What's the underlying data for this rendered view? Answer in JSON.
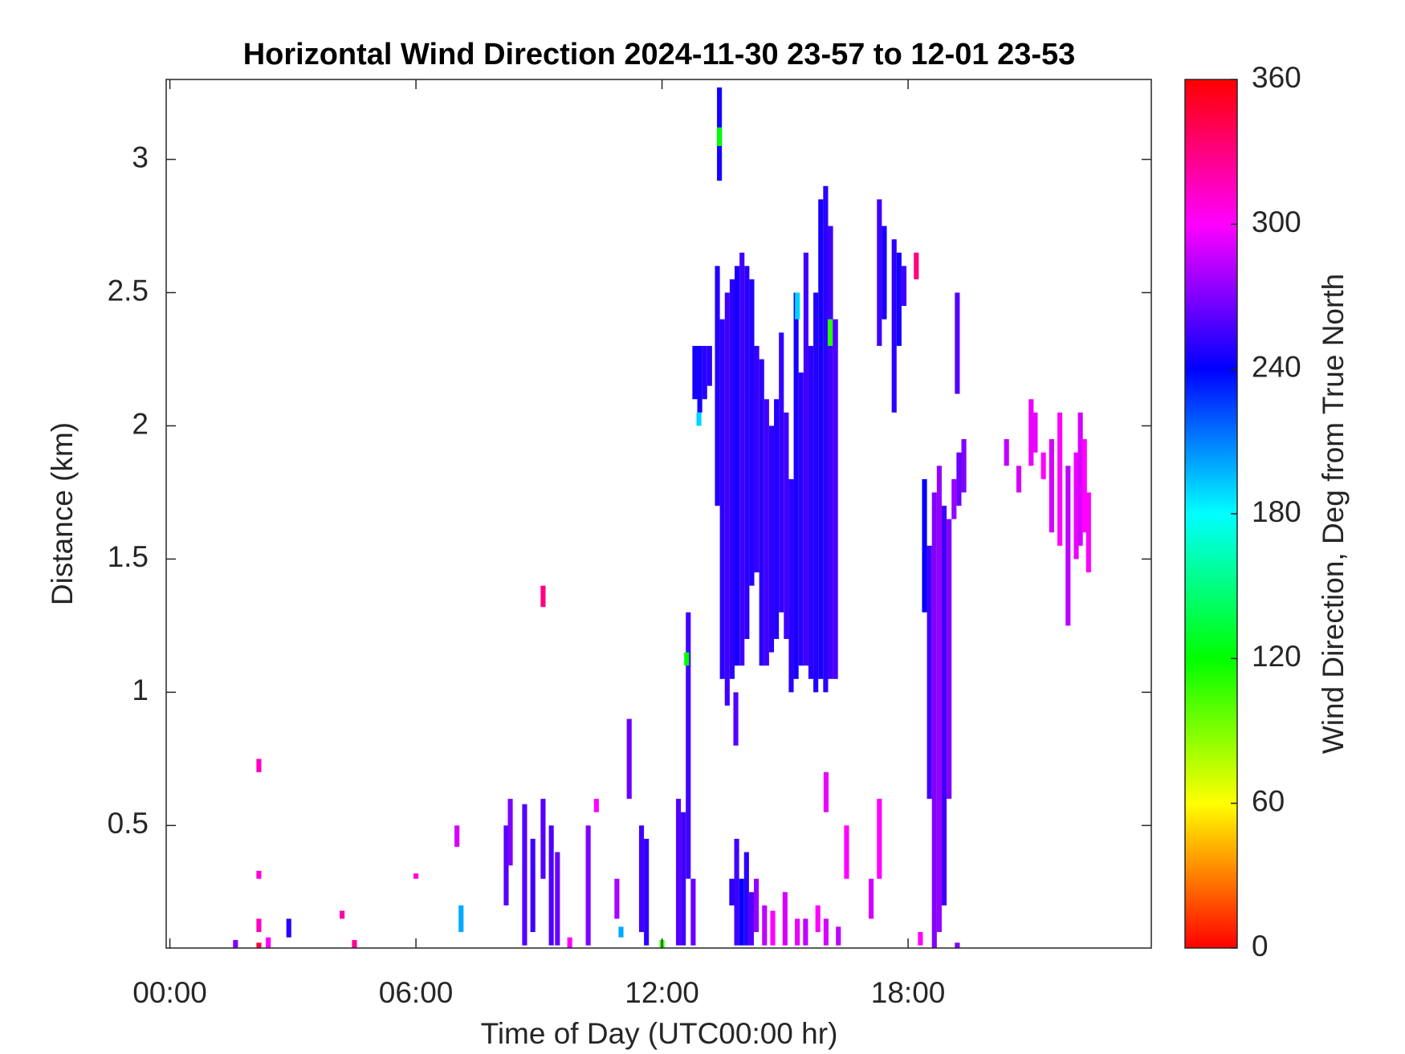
{
  "chart_data": {
    "type": "heatmap",
    "title": "Horizontal Wind Direction 2024-11-30 23-57 to 12-01 23-53",
    "x_label": "Time of Day (UTC00:00 hr)",
    "y_label": "Distance (km)",
    "colorbar_label": "Wind Direction, Deg from True North",
    "xlim": [
      -0.09,
      23.93
    ],
    "xticks": [
      {
        "value": 0,
        "label": "00:00"
      },
      {
        "value": 6,
        "label": "06:00"
      },
      {
        "value": 12,
        "label": "12:00"
      },
      {
        "value": 18,
        "label": "18:00"
      }
    ],
    "ylim": [
      0.04,
      3.3
    ],
    "yticks": [
      0.5,
      1,
      1.5,
      2,
      2.5,
      3
    ],
    "clim": [
      0,
      360
    ],
    "cticks": [
      0,
      60,
      120,
      180,
      240,
      300,
      360
    ],
    "colormap": [
      "#ff0000",
      "#ffff00",
      "#00ff00",
      "#00ffff",
      "#0000ff",
      "#ff00ff",
      "#ff0000"
    ],
    "x": [
      13.4,
      13.35,
      13.47,
      13.59,
      13.71,
      13.83,
      13.95,
      14.07,
      14.19,
      14.31,
      14.43,
      14.55,
      14.67,
      14.79,
      14.91,
      15.03,
      15.15,
      15.27,
      15.39,
      15.51,
      15.63,
      15.75,
      15.87,
      15.99,
      16.11,
      16.23,
      12.8,
      12.92,
      13.04,
      13.16,
      17.3,
      17.42,
      17.66,
      17.78,
      17.9,
      18.2,
      19.2,
      18.4,
      18.52,
      18.64,
      18.76,
      18.88,
      19.0,
      19.12,
      19.24,
      19.36,
      20.4,
      20.7,
      21.0,
      21.1,
      21.3,
      21.5,
      21.7,
      21.9,
      22.1,
      22.2,
      22.3,
      22.4,
      8.2,
      8.3,
      8.65,
      8.85,
      9.1,
      9.3,
      9.45,
      11.5,
      11.62,
      12.4,
      12.52,
      12.64,
      12.76,
      13.7,
      13.82,
      13.94,
      14.06,
      14.18,
      14.3,
      14.5,
      14.7,
      15.0,
      15.3,
      15.5,
      15.8,
      16.0,
      16.3,
      16.5,
      17.1,
      17.3,
      16.0,
      2.17,
      2.17,
      2.17,
      2.17,
      2.4,
      4.2,
      4.5,
      6.0,
      9.1,
      1.6,
      2.9,
      7.1,
      7.0,
      10.4,
      10.2,
      11.2,
      13.8,
      12.6,
      13.4,
      15.3,
      16.1,
      12.9,
      18.3,
      19.2,
      12.0,
      10.9,
      11.0,
      9.75
    ],
    "y_bottom": [
      2.92,
      1.7,
      1.05,
      0.95,
      1.05,
      1.1,
      1.1,
      1.2,
      1.4,
      1.45,
      1.1,
      1.1,
      1.15,
      1.2,
      1.3,
      1.2,
      1.0,
      1.05,
      1.1,
      1.1,
      1.05,
      1.0,
      1.05,
      1.0,
      1.05,
      1.05,
      2.1,
      2.05,
      2.1,
      2.15,
      2.3,
      2.4,
      2.05,
      2.3,
      2.45,
      2.55,
      2.12,
      1.3,
      0.6,
      0.04,
      0.1,
      0.2,
      0.6,
      1.65,
      1.7,
      1.75,
      1.85,
      1.75,
      1.85,
      1.9,
      1.8,
      1.6,
      1.55,
      1.25,
      1.5,
      1.55,
      1.6,
      1.45,
      0.2,
      0.35,
      0.05,
      0.1,
      0.3,
      0.05,
      0.05,
      0.1,
      0.05,
      0.05,
      0.05,
      0.3,
      0.05,
      0.2,
      0.05,
      0.05,
      0.05,
      0.05,
      0.1,
      0.05,
      0.05,
      0.05,
      0.05,
      0.05,
      0.1,
      0.05,
      0.05,
      0.3,
      0.15,
      0.3,
      0.55,
      0.7,
      0.3,
      0.1,
      0.04,
      0.04,
      0.15,
      0.04,
      0.3,
      1.32,
      0.04,
      0.08,
      0.1,
      0.42,
      0.55,
      0.05,
      0.6,
      0.8,
      1.1,
      3.05,
      2.4,
      2.3,
      2.0,
      0.05,
      0.04,
      0.04,
      0.15,
      0.08,
      0.04
    ],
    "y_top": [
      3.27,
      2.6,
      2.4,
      2.5,
      2.55,
      2.6,
      2.65,
      2.6,
      2.55,
      2.3,
      2.25,
      2.1,
      2.0,
      2.1,
      2.35,
      2.05,
      1.8,
      2.5,
      2.2,
      2.65,
      2.3,
      2.5,
      2.85,
      2.9,
      2.75,
      2.4,
      2.3,
      2.3,
      2.3,
      2.3,
      2.85,
      2.75,
      2.7,
      2.65,
      2.6,
      2.65,
      2.5,
      1.8,
      1.55,
      1.75,
      1.85,
      1.7,
      1.65,
      1.8,
      1.9,
      1.95,
      1.95,
      1.85,
      2.1,
      2.05,
      1.9,
      1.95,
      2.05,
      1.85,
      1.9,
      2.05,
      1.95,
      1.75,
      0.5,
      0.6,
      0.58,
      0.45,
      0.6,
      0.5,
      0.4,
      0.5,
      0.45,
      0.6,
      0.55,
      1.3,
      0.3,
      0.3,
      0.45,
      0.3,
      0.4,
      0.25,
      0.3,
      0.2,
      0.18,
      0.25,
      0.15,
      0.15,
      0.2,
      0.15,
      0.12,
      0.5,
      0.3,
      0.6,
      0.7,
      0.75,
      0.33,
      0.15,
      0.06,
      0.08,
      0.18,
      0.07,
      0.32,
      1.4,
      0.07,
      0.15,
      0.2,
      0.5,
      0.6,
      0.5,
      0.9,
      1.0,
      1.15,
      3.12,
      2.5,
      2.4,
      2.05,
      0.1,
      0.06,
      0.07,
      0.3,
      0.12,
      0.08
    ],
    "values": [
      245,
      248,
      250,
      255,
      250,
      245,
      255,
      250,
      248,
      252,
      250,
      255,
      250,
      248,
      252,
      255,
      250,
      245,
      250,
      255,
      250,
      248,
      245,
      250,
      255,
      258,
      245,
      245,
      250,
      250,
      255,
      245,
      250,
      245,
      255,
      330,
      260,
      240,
      255,
      270,
      275,
      255,
      270,
      275,
      265,
      270,
      285,
      290,
      295,
      295,
      300,
      290,
      300,
      285,
      295,
      290,
      300,
      300,
      260,
      270,
      260,
      255,
      260,
      258,
      265,
      255,
      250,
      260,
      255,
      255,
      265,
      250,
      255,
      240,
      250,
      260,
      275,
      285,
      300,
      290,
      295,
      285,
      300,
      290,
      285,
      300,
      290,
      300,
      295,
      315,
      310,
      315,
      345,
      300,
      320,
      325,
      305,
      330,
      270,
      250,
      200,
      290,
      300,
      270,
      265,
      260,
      120,
      120,
      190,
      110,
      190,
      300,
      270,
      110,
      280,
      200,
      300
    ]
  }
}
